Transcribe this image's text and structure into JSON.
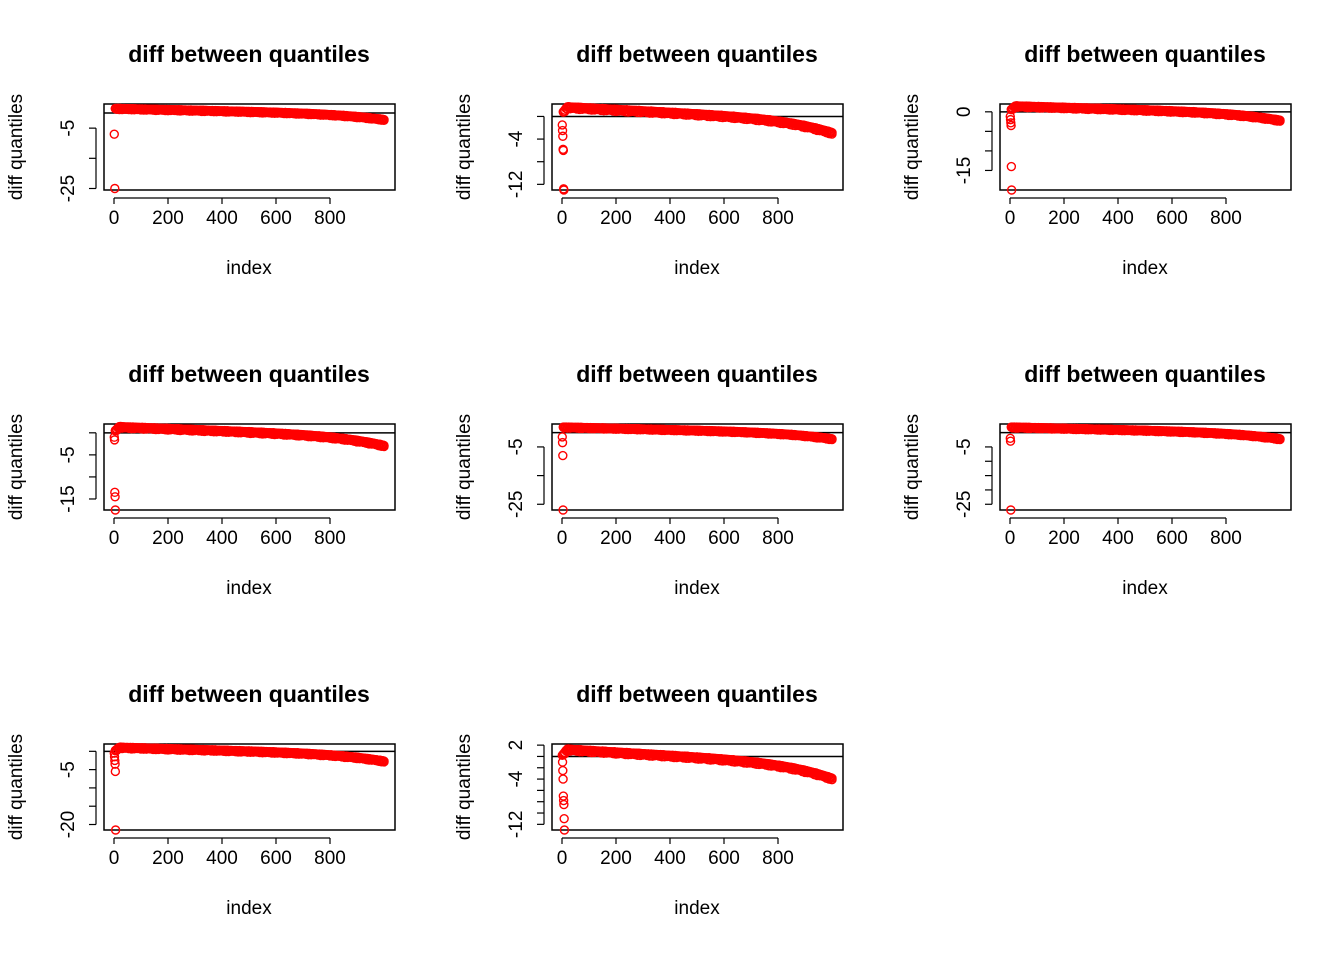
{
  "figure": {
    "layout": "3x3 grid, 8 panels, bottom-right empty"
  },
  "colors": {
    "points": "#ff0000",
    "frame": "#000000",
    "refline": "#000000",
    "background": "#ffffff"
  },
  "chart_data": [
    {
      "type": "scatter",
      "title": "diff between quantiles",
      "xlabel": "index",
      "ylabel": "diff quantiles",
      "xlim": [
        0,
        1000
      ],
      "xticks": [
        0,
        200,
        400,
        600,
        800
      ],
      "ylim": [
        -25.5,
        3
      ],
      "yticks": [
        -5,
        -25
      ],
      "minor_yticks": [
        -15
      ],
      "hline": 0,
      "curve": {
        "start": 1.4,
        "end": -2.3,
        "ramp": 0
      },
      "outliers": [
        [
          1,
          -7
        ],
        [
          3,
          -25
        ]
      ]
    },
    {
      "type": "scatter",
      "title": "diff between quantiles",
      "xlabel": "index",
      "ylabel": "diff quantiles",
      "xlim": [
        0,
        1000
      ],
      "xticks": [
        0,
        200,
        400,
        600,
        800
      ],
      "ylim": [
        -13,
        2.2
      ],
      "yticks": [
        -4,
        -12
      ],
      "minor_yticks": [
        0,
        -8
      ],
      "hline": 0,
      "curve": {
        "start": 1.6,
        "end": -3.0,
        "ramp": 20
      },
      "outliers": [
        [
          1,
          -1.5
        ],
        [
          2,
          -2.5
        ],
        [
          3,
          -3.5
        ],
        [
          4,
          -5.8
        ],
        [
          5,
          -6.0
        ],
        [
          6,
          -12.8
        ],
        [
          7,
          -13.0
        ]
      ]
    },
    {
      "type": "scatter",
      "title": "diff between quantiles",
      "xlabel": "index",
      "ylabel": "diff quantiles",
      "xlim": [
        0,
        1000
      ],
      "xticks": [
        0,
        200,
        400,
        600,
        800
      ],
      "ylim": [
        -20,
        2.0
      ],
      "yticks": [
        0,
        -15
      ],
      "minor_yticks": [
        -5,
        -10
      ],
      "hline": 0,
      "curve": {
        "start": 1.4,
        "end": -2.3,
        "ramp": 20
      },
      "outliers": [
        [
          1,
          -1.2
        ],
        [
          2,
          -2.0
        ],
        [
          3,
          -2.8
        ],
        [
          4,
          -3.5
        ],
        [
          5,
          -14
        ],
        [
          6,
          -20
        ]
      ]
    },
    {
      "type": "scatter",
      "title": "diff between quantiles",
      "xlabel": "index",
      "ylabel": "diff quantiles",
      "xlim": [
        0,
        1000
      ],
      "xticks": [
        0,
        200,
        400,
        600,
        800
      ],
      "ylim": [
        -17.5,
        2.0
      ],
      "yticks": [
        -5,
        -15
      ],
      "minor_yticks": [
        0,
        -10
      ],
      "hline": 0,
      "curve": {
        "start": 1.3,
        "end": -3.0,
        "ramp": 20
      },
      "outliers": [
        [
          1,
          -1.0
        ],
        [
          2,
          -1.6
        ],
        [
          3,
          -13.5
        ],
        [
          4,
          -14.5
        ],
        [
          5,
          -17.5
        ]
      ]
    },
    {
      "type": "scatter",
      "title": "diff between quantiles",
      "xlabel": "index",
      "ylabel": "diff quantiles",
      "xlim": [
        0,
        1000
      ],
      "xticks": [
        0,
        200,
        400,
        600,
        800
      ],
      "ylim": [
        -27,
        3.0
      ],
      "yticks": [
        -5,
        -25
      ],
      "minor_yticks": [
        -15
      ],
      "hline": 0,
      "curve": {
        "start": 1.8,
        "end": -2.3,
        "ramp": 0
      },
      "outliers": [
        [
          1,
          -1.5
        ],
        [
          2,
          -3.5
        ],
        [
          3,
          -8.0
        ],
        [
          4,
          -27
        ]
      ]
    },
    {
      "type": "scatter",
      "title": "diff between quantiles",
      "xlabel": "index",
      "ylabel": "diff quantiles",
      "xlim": [
        0,
        1000
      ],
      "xticks": [
        0,
        200,
        400,
        600,
        800
      ],
      "ylim": [
        -27,
        3.0
      ],
      "yticks": [
        -5,
        -25
      ],
      "minor_yticks": [
        -10,
        -15,
        -20
      ],
      "hline": 0,
      "curve": {
        "start": 1.8,
        "end": -2.3,
        "ramp": 0
      },
      "outliers": [
        [
          1,
          -2.0
        ],
        [
          2,
          -3.0
        ],
        [
          3,
          -27
        ]
      ]
    },
    {
      "type": "scatter",
      "title": "diff between quantiles",
      "xlabel": "index",
      "ylabel": "diff quantiles",
      "xlim": [
        0,
        1000
      ],
      "xticks": [
        0,
        200,
        400,
        600,
        800
      ],
      "ylim": [
        -21.5,
        2.0
      ],
      "yticks": [
        -5,
        -20
      ],
      "minor_yticks": [
        0,
        -10,
        -15
      ],
      "hline": 0,
      "curve": {
        "start": 1.0,
        "end": -2.8,
        "ramp": 20
      },
      "outliers": [
        [
          1,
          -0.5
        ],
        [
          2,
          -1.5
        ],
        [
          3,
          -2.5
        ],
        [
          4,
          -3.5
        ],
        [
          5,
          -5.5
        ],
        [
          6,
          -21.5
        ]
      ]
    },
    {
      "type": "scatter",
      "title": "diff between quantiles",
      "xlabel": "index",
      "ylabel": "diff quantiles",
      "xlim": [
        0,
        1000
      ],
      "xticks": [
        0,
        200,
        400,
        600,
        800
      ],
      "ylim": [
        -13,
        2.2
      ],
      "yticks": [
        2,
        -4,
        -12
      ],
      "minor_yticks": [
        0,
        -2,
        -6,
        -8,
        -10
      ],
      "hline": 0,
      "curve": {
        "start": 1.2,
        "end": -4.0,
        "ramp": 20
      },
      "outliers": [
        [
          1,
          0.2
        ],
        [
          2,
          -1.0
        ],
        [
          3,
          -2.5
        ],
        [
          4,
          -4.0
        ],
        [
          5,
          -7.0
        ],
        [
          6,
          -7.8
        ],
        [
          7,
          -8.5
        ],
        [
          8,
          -11.0
        ],
        [
          9,
          -13.0
        ]
      ]
    }
  ]
}
